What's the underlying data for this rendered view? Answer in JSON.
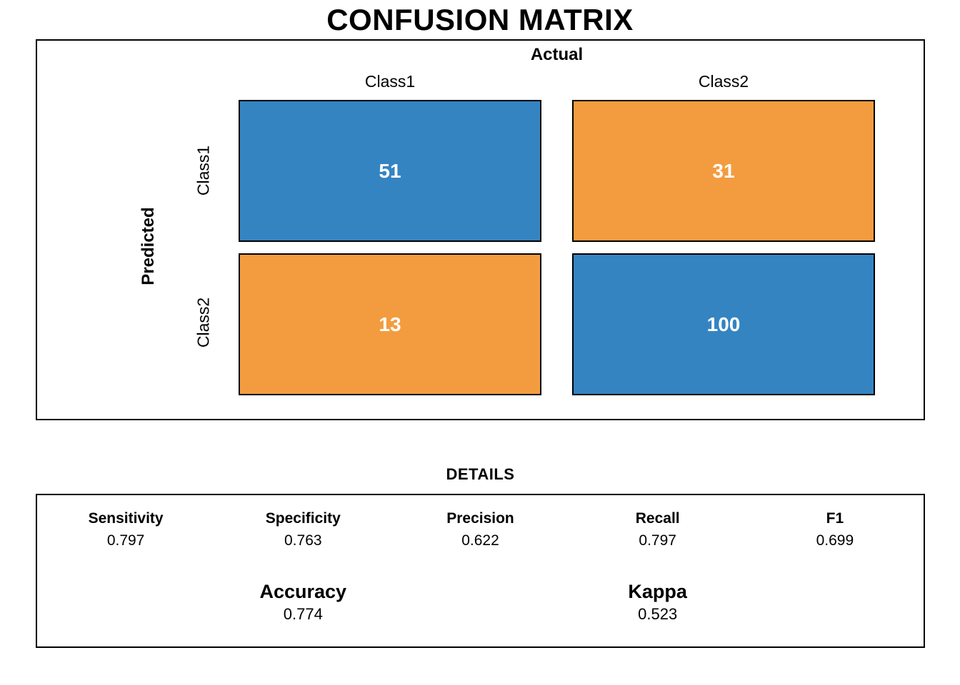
{
  "chart_data": {
    "type": "heatmap",
    "title": "CONFUSION MATRIX",
    "xlabel": "Actual",
    "ylabel": "Predicted",
    "x_categories": [
      "Class1",
      "Class2"
    ],
    "y_categories": [
      "Class1",
      "Class2"
    ],
    "values": [
      [
        51,
        31
      ],
      [
        13,
        100
      ]
    ],
    "cell_colors": [
      [
        "#3484C2",
        "#F39C3F"
      ],
      [
        "#F39C3F",
        "#3484C2"
      ]
    ],
    "legend": "none",
    "grid": "off",
    "details": {
      "title": "DETAILS",
      "metrics": [
        {
          "label": "Sensitivity",
          "value": "0.797"
        },
        {
          "label": "Specificity",
          "value": "0.763"
        },
        {
          "label": "Precision",
          "value": "0.622"
        },
        {
          "label": "Recall",
          "value": "0.797"
        },
        {
          "label": "F1",
          "value": "0.699"
        }
      ],
      "summary": [
        {
          "label": "Accuracy",
          "value": "0.774"
        },
        {
          "label": "Kappa",
          "value": "0.523"
        }
      ]
    }
  },
  "colors": {
    "diagonal_cell": "#3484C2",
    "off_diagonal_cell": "#F39C3F",
    "cell_value_text": "#FFFFFF",
    "border": "#000000",
    "background": "#FFFFFF"
  }
}
